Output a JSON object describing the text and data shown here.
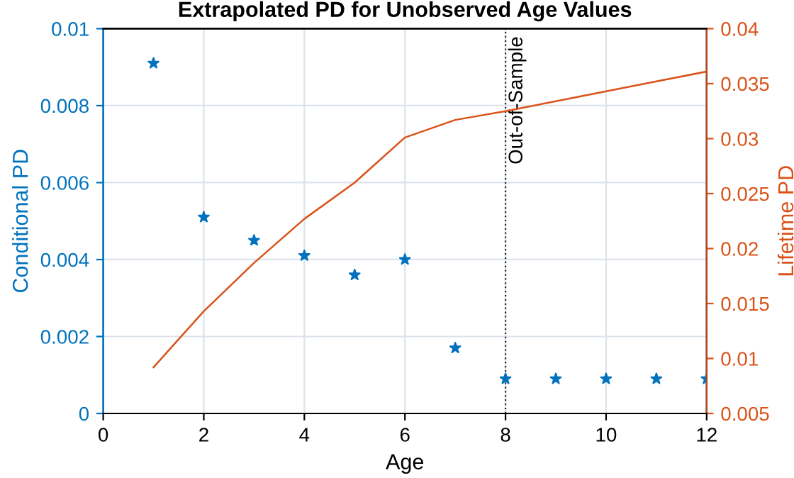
{
  "chart_data": {
    "type": "scatter",
    "title": "Extrapolated PD for Unobserved Age Values",
    "xlabel": "Age",
    "ylabel": "Conditional PD",
    "y2label": "Lifetime PD",
    "x": [
      1,
      2,
      3,
      4,
      5,
      6,
      7,
      8,
      9,
      10,
      11,
      12
    ],
    "series": [
      {
        "color": "#0072bd",
        "marker": "star",
        "values": [
          0.0091,
          0.0051,
          0.0045,
          0.0041,
          0.0036,
          0.004,
          0.0017,
          0.0009,
          0.0009,
          0.0009,
          0.0009,
          0.0009
        ]
      },
      {
        "type": "line",
        "axis": "y2",
        "color": "#d95319",
        "marker": "none",
        "values": [
          0.0092,
          0.0143,
          0.0187,
          0.0227,
          0.026,
          0.0301,
          0.0317,
          0.0325,
          0.0334,
          0.0343,
          0.0352,
          0.0361
        ]
      }
    ],
    "xlim": [
      0,
      12
    ],
    "xticks": [
      0,
      2,
      4,
      6,
      8,
      10,
      12
    ],
    "ylim": [
      0,
      0.01
    ],
    "yticks": [
      0,
      0.002,
      0.004,
      0.006,
      0.008,
      0.01
    ],
    "y2lim": [
      0.005,
      0.04
    ],
    "y2ticks": [
      0.005,
      0.01,
      0.015,
      0.02,
      0.025,
      0.03,
      0.035,
      0.04
    ],
    "ref_lines": [
      {
        "axis": "x",
        "value": 8,
        "label": "Out-of-Sample",
        "color": "#262626",
        "line_style": "dotted"
      }
    ],
    "grid": true
  }
}
